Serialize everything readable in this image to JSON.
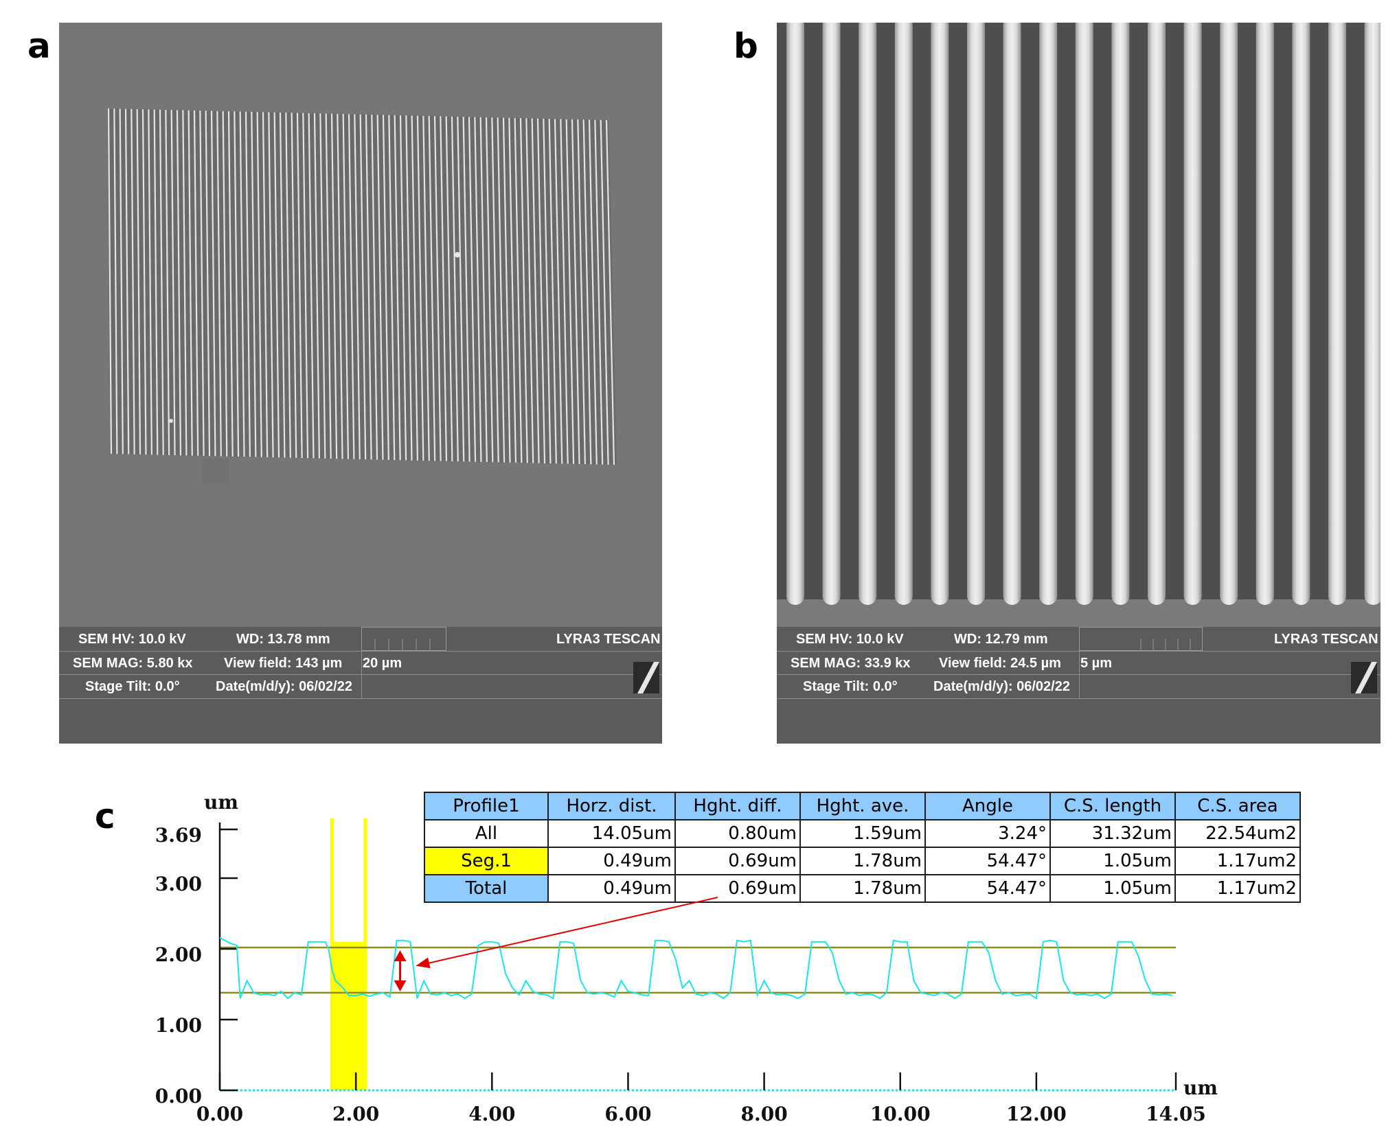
{
  "panels": {
    "a": {
      "label": "a",
      "sem": {
        "hv": "SEM HV: 10.0 kV",
        "wd": "WD: 13.78 mm",
        "brand": "LYRA3 TESCAN",
        "mag": "SEM MAG: 5.80 kx",
        "view_field": "View field: 143 µm",
        "scale": "20 µm",
        "tilt": "Stage Tilt: 0.0°",
        "date": "Date(m/d/y): 06/02/22"
      }
    },
    "b": {
      "label": "b",
      "sem": {
        "hv": "SEM HV: 10.0 kV",
        "wd": "WD: 12.79 mm",
        "brand": "LYRA3 TESCAN",
        "mag": "SEM MAG: 33.9 kx",
        "view_field": "View field: 24.5 µm",
        "scale": "5 µm",
        "tilt": "Stage Tilt: 0.0°",
        "date": "Date(m/d/y): 06/02/22"
      }
    },
    "c": {
      "label": "c",
      "table": {
        "headers": [
          "Profile1",
          "Horz. dist.",
          "Hght. diff.",
          "Hght. ave.",
          "Angle",
          "C.S. length",
          "C.S. area"
        ],
        "rows": [
          [
            "All",
            "14.05um",
            "0.80um",
            "1.59um",
            "3.24°",
            "31.32um",
            "22.54um2"
          ],
          [
            "Seg.1",
            "0.49um",
            "0.69um",
            "1.78um",
            "54.47°",
            "1.05um",
            "1.17um2"
          ],
          [
            "Total",
            "0.49um",
            "0.69um",
            "1.78um",
            "54.47°",
            "1.05um",
            "1.17um2"
          ]
        ]
      }
    }
  },
  "chart_data": {
    "type": "line",
    "xlabel": "um",
    "ylabel": "um",
    "xlim": [
      0,
      14.05
    ],
    "ylim": [
      0,
      3.69
    ],
    "x_ticks": [
      "0.00",
      "2.00",
      "4.00",
      "6.00",
      "8.00",
      "10.00",
      "12.00",
      "14.05"
    ],
    "y_ticks": [
      "0.00",
      "1.00",
      "2.00",
      "3.00",
      "3.69"
    ],
    "series": [
      {
        "color": "#19e6e6",
        "x": [
          0.0,
          0.15,
          0.25,
          0.3,
          0.4,
          0.5,
          0.6,
          0.7,
          0.8,
          0.9,
          1.0,
          1.1,
          1.2,
          1.3,
          1.4,
          1.5,
          1.55,
          1.6,
          1.65,
          1.7,
          1.8,
          1.9,
          2.0,
          2.1,
          2.2,
          2.3,
          2.4,
          2.5,
          2.6,
          2.7,
          2.8,
          2.9,
          3.0,
          3.1,
          3.2,
          3.3,
          3.4,
          3.5,
          3.6,
          3.7,
          3.8,
          3.9,
          4.0,
          4.1,
          4.2,
          4.3,
          4.4,
          4.5,
          4.6,
          4.7,
          4.8,
          4.9,
          5.0,
          5.1,
          5.2,
          5.3,
          5.4,
          5.5,
          5.6,
          5.7,
          5.8,
          5.9,
          6.0,
          6.1,
          6.2,
          6.3,
          6.4,
          6.5,
          6.6,
          6.7,
          6.8,
          6.9,
          7.0,
          7.1,
          7.2,
          7.3,
          7.4,
          7.5,
          7.6,
          7.7,
          7.8,
          7.9,
          8.0,
          8.1,
          8.2,
          8.3,
          8.4,
          8.5,
          8.6,
          8.7,
          8.8,
          8.9,
          9.0,
          9.1,
          9.2,
          9.3,
          9.4,
          9.5,
          9.6,
          9.7,
          9.8,
          9.9,
          10.0,
          10.1,
          10.2,
          10.3,
          10.4,
          10.5,
          10.6,
          10.7,
          10.8,
          10.9,
          11.0,
          11.1,
          11.2,
          11.3,
          11.4,
          11.5,
          11.6,
          11.7,
          11.8,
          11.9,
          12.0,
          12.1,
          12.2,
          12.3,
          12.4,
          12.5,
          12.6,
          12.7,
          12.8,
          12.9,
          13.0,
          13.1,
          13.2,
          13.3,
          13.4,
          13.5,
          13.6,
          13.7,
          13.8,
          13.9,
          14.0
        ],
        "y": [
          2.16,
          2.08,
          2.05,
          1.3,
          1.55,
          1.38,
          1.35,
          1.36,
          1.34,
          1.4,
          1.3,
          1.38,
          1.35,
          2.1,
          2.1,
          2.1,
          2.1,
          2.0,
          1.7,
          1.55,
          1.46,
          1.34,
          1.34,
          1.36,
          1.33,
          1.36,
          1.38,
          1.32,
          2.12,
          2.12,
          2.1,
          1.3,
          1.55,
          1.36,
          1.35,
          1.38,
          1.34,
          1.36,
          1.3,
          1.36,
          2.05,
          2.1,
          2.1,
          2.08,
          1.65,
          1.45,
          1.35,
          1.55,
          1.4,
          1.36,
          1.35,
          1.3,
          2.1,
          2.1,
          2.08,
          1.56,
          1.38,
          1.36,
          1.38,
          1.36,
          1.32,
          1.55,
          1.4,
          1.38,
          1.35,
          1.34,
          2.12,
          2.12,
          2.1,
          1.85,
          1.45,
          1.55,
          1.36,
          1.34,
          1.38,
          1.36,
          1.3,
          1.38,
          2.12,
          2.1,
          2.12,
          1.35,
          1.55,
          1.38,
          1.35,
          1.36,
          1.34,
          1.3,
          1.36,
          2.1,
          2.1,
          2.1,
          1.95,
          1.56,
          1.36,
          1.38,
          1.34,
          1.36,
          1.35,
          1.3,
          1.38,
          2.12,
          2.1,
          2.1,
          1.55,
          1.38,
          1.36,
          1.34,
          1.38,
          1.36,
          1.3,
          1.36,
          2.1,
          2.1,
          2.1,
          1.95,
          1.55,
          1.36,
          1.38,
          1.34,
          1.35,
          1.36,
          1.3,
          2.1,
          2.12,
          2.1,
          1.55,
          1.38,
          1.35,
          1.36,
          1.34,
          1.36,
          1.3,
          1.36,
          2.1,
          2.1,
          2.1,
          1.9,
          1.56,
          1.36,
          1.35,
          1.36,
          1.34
        ]
      }
    ],
    "reference_levels": [
      2.02,
      1.38
    ],
    "highlight_x": [
      1.65,
      2.14
    ],
    "annotation_arrow_y": [
      1.4,
      1.98
    ]
  }
}
